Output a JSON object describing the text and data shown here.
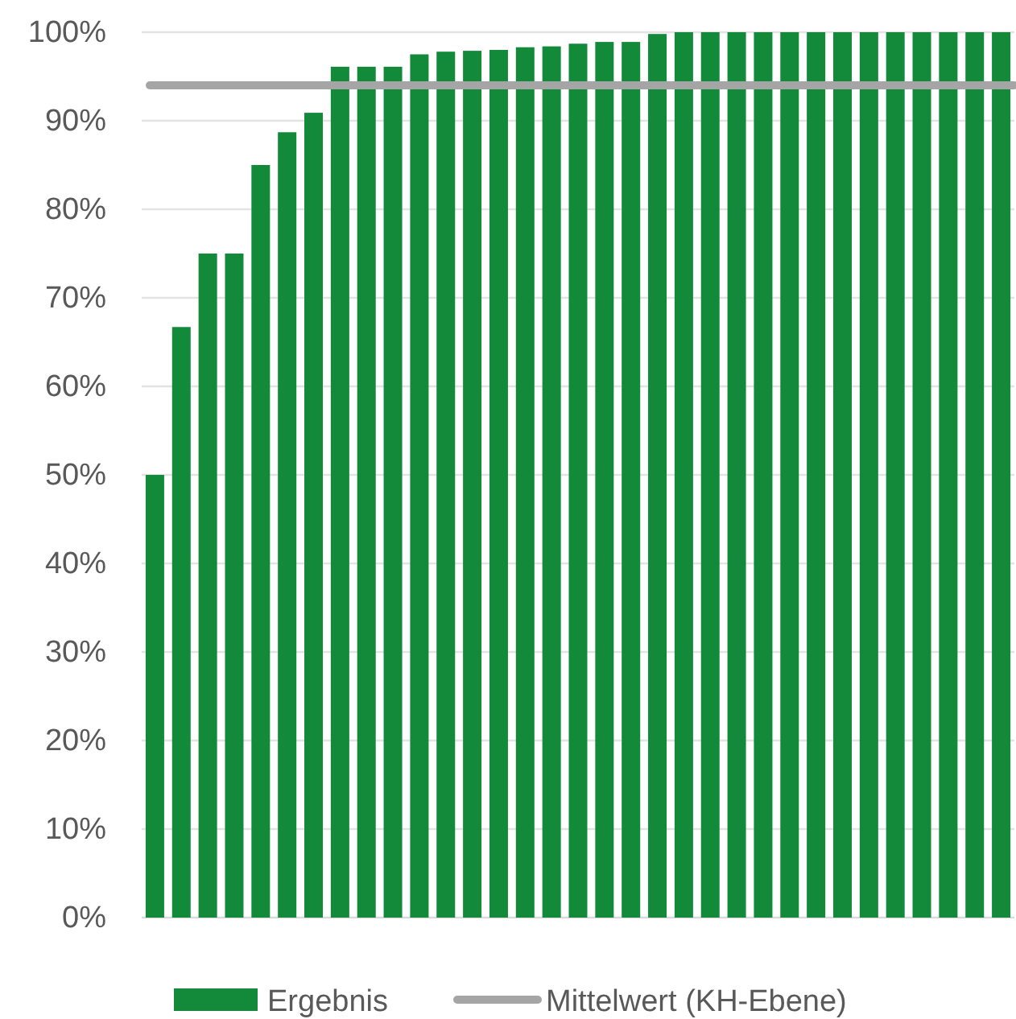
{
  "chart_data": {
    "type": "bar",
    "categories": [
      null,
      null,
      null,
      null,
      null,
      null,
      null,
      null,
      null,
      null,
      null,
      null,
      null,
      null,
      null,
      null,
      null,
      null,
      null,
      null,
      null,
      null,
      null,
      null,
      null,
      null,
      null,
      null,
      null,
      null,
      null,
      null,
      null
    ],
    "series": [
      {
        "name": "Ergebnis",
        "color": "#138a3a",
        "values": [
          50,
          66.7,
          75,
          75,
          85,
          88.7,
          90.9,
          96.1,
          96.1,
          96.1,
          97.5,
          97.8,
          97.9,
          98,
          98.3,
          98.4,
          98.7,
          98.9,
          98.9,
          99.8,
          100,
          100,
          100,
          100,
          100,
          100,
          100,
          100,
          100,
          100,
          100,
          100,
          100
        ]
      }
    ],
    "ylim": [
      0,
      100
    ],
    "yticks": [
      {
        "value": 0,
        "label": "0%"
      },
      {
        "value": 10,
        "label": "10%"
      },
      {
        "value": 20,
        "label": "20%"
      },
      {
        "value": 30,
        "label": "30%"
      },
      {
        "value": 40,
        "label": "40%"
      },
      {
        "value": 50,
        "label": "50%"
      },
      {
        "value": 60,
        "label": "60%"
      },
      {
        "value": 70,
        "label": "70%"
      },
      {
        "value": 80,
        "label": "80%"
      },
      {
        "value": 90,
        "label": "90%"
      },
      {
        "value": 100,
        "label": "100%"
      }
    ],
    "ref_lines": [
      {
        "axis": "y",
        "value": 94,
        "label": "Mittelwert (KH-Ebene)",
        "color": "#a5a5a5"
      }
    ],
    "grid": "y",
    "legend": "bottom",
    "tick_labels": "y"
  }
}
